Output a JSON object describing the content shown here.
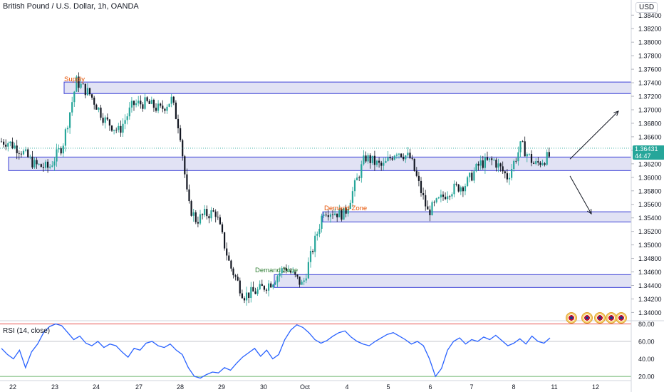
{
  "header": {
    "symbol_title": "British Pound / U.S. Dollar, 1h, OANDA",
    "currency": "USD"
  },
  "price_tag": {
    "price": "1.36431",
    "countdown": "44:47",
    "color": "#26a69a"
  },
  "rsi_panel": {
    "label": "RSI (14, close)",
    "ticks": [
      "80.00",
      "60.00",
      "40.00",
      "20.00"
    ],
    "upper_band": 80,
    "middle_band": 60,
    "lower_band": 20,
    "line_color": "#2962ff"
  },
  "chart_data": [
    {
      "type": "candlestick",
      "title": "British Pound / U.S. Dollar, 1h, OANDA",
      "y_ticks": [
        "1.38400",
        "1.38200",
        "1.38000",
        "1.37800",
        "1.37600",
        "1.37400",
        "1.37200",
        "1.37000",
        "1.36800",
        "1.36600",
        "1.36400",
        "1.36200",
        "1.36000",
        "1.35800",
        "1.35600",
        "1.35400",
        "1.35200",
        "1.35000",
        "1.34800",
        "1.34600",
        "1.34400",
        "1.34200",
        "1.34000"
      ],
      "ylim": [
        1.3392,
        1.3854
      ],
      "x_ticks": [
        "22",
        "23",
        "24",
        "27",
        "28",
        "29",
        "30",
        "Oct",
        "4",
        "5",
        "6",
        "7",
        "8",
        "11",
        "12"
      ],
      "last_price": 1.36431,
      "up_color": "#26a69a",
      "down_color": "#131722",
      "zones": [
        {
          "label": "Supply",
          "low": 1.3724,
          "high": 1.3741,
          "color": "#e65100"
        },
        {
          "label": "",
          "low": 1.361,
          "high": 1.363,
          "color": ""
        },
        {
          "label": "Demand Zone",
          "low": 1.3437,
          "high": 1.3456,
          "color": "#2e7d32"
        },
        {
          "label": "Demand Zone",
          "low": 1.3534,
          "high": 1.3549,
          "color": "#e65100"
        }
      ],
      "path_anchors": [
        {
          "x": "22",
          "y": 1.3653
        },
        {
          "x": "22",
          "y": 1.364
        },
        {
          "x": "22",
          "y": 1.3618
        },
        {
          "x": "23",
          "y": 1.3614
        },
        {
          "x": "23",
          "y": 1.3648
        },
        {
          "x": "23",
          "y": 1.3742
        },
        {
          "x": "24",
          "y": 1.3722
        },
        {
          "x": "24",
          "y": 1.3685
        },
        {
          "x": "24",
          "y": 1.3668
        },
        {
          "x": "27",
          "y": 1.3708
        },
        {
          "x": "27",
          "y": 1.371
        },
        {
          "x": "27",
          "y": 1.37
        },
        {
          "x": "28",
          "y": 1.3715
        },
        {
          "x": "28",
          "y": 1.367
        },
        {
          "x": "28",
          "y": 1.356
        },
        {
          "x": "28",
          "y": 1.3536
        },
        {
          "x": "28",
          "y": 1.3545
        },
        {
          "x": "29",
          "y": 1.3548
        },
        {
          "x": "29",
          "y": 1.347
        },
        {
          "x": "29",
          "y": 1.3425
        },
        {
          "x": "30",
          "y": 1.3432
        },
        {
          "x": "30",
          "y": 1.3445
        },
        {
          "x": "30",
          "y": 1.3468
        },
        {
          "x": "Oct",
          "y": 1.344
        },
        {
          "x": "Oct",
          "y": 1.3552
        },
        {
          "x": "4",
          "y": 1.3545
        },
        {
          "x": "4",
          "y": 1.363
        },
        {
          "x": "5",
          "y": 1.3615
        },
        {
          "x": "5",
          "y": 1.364
        },
        {
          "x": "5",
          "y": 1.3628
        },
        {
          "x": "6",
          "y": 1.3548
        },
        {
          "x": "6",
          "y": 1.358
        },
        {
          "x": "7",
          "y": 1.359
        },
        {
          "x": "7",
          "y": 1.362
        },
        {
          "x": "7",
          "y": 1.3625
        },
        {
          "x": "8",
          "y": 1.36
        },
        {
          "x": "8",
          "y": 1.3648
        },
        {
          "x": "8",
          "y": 1.3618
        },
        {
          "x": "11",
          "y": 1.3643
        }
      ],
      "arrows": [
        {
          "direction": "up",
          "from_price": 1.3627,
          "to_price": 1.3698
        },
        {
          "direction": "down",
          "from_price": 1.3602,
          "to_price": 1.3546
        }
      ]
    },
    {
      "type": "line",
      "title": "RSI (14, close)",
      "ylim": [
        16,
        82
      ],
      "series": [
        {
          "name": "",
          "values": [
            52,
            45,
            40,
            50,
            30,
            48,
            57,
            70,
            77,
            80,
            78,
            70,
            62,
            66,
            58,
            55,
            60,
            53,
            57,
            55,
            48,
            42,
            52,
            50,
            58,
            60,
            55,
            53,
            57,
            50,
            45,
            30,
            20,
            18,
            22,
            25,
            24,
            30,
            27,
            35,
            42,
            47,
            52,
            43,
            50,
            40,
            45,
            62,
            73,
            79,
            76,
            70,
            62,
            58,
            61,
            66,
            70,
            72,
            65,
            60,
            57,
            55,
            60,
            64,
            68,
            70,
            66,
            62,
            57,
            60,
            55,
            40,
            20,
            29,
            50,
            60,
            64,
            57,
            62,
            60,
            65,
            62,
            67,
            61,
            55,
            58,
            63,
            57,
            66,
            60,
            58,
            64
          ]
        }
      ]
    }
  ]
}
